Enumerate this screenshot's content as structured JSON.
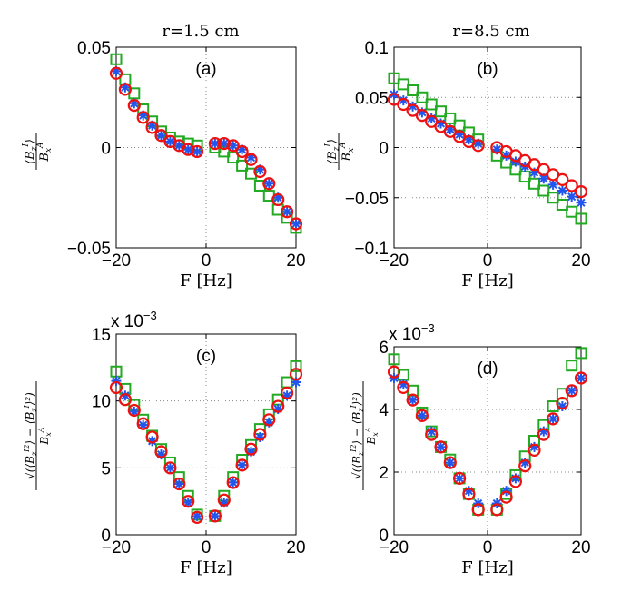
{
  "figure": {
    "column_titles": [
      "r=1.5 cm",
      "r=8.5 cm"
    ]
  },
  "chart_data": [
    {
      "panel": "(a)",
      "type": "scatter",
      "title": "r=1.5 cm",
      "xlabel": "F [Hz]",
      "ylabel": "⟨B_z^I⟩ / B_x^A",
      "xlim": [
        -20,
        20
      ],
      "ylim": [
        -0.05,
        0.05
      ],
      "xticks": [
        -20,
        0,
        20
      ],
      "xtick_labels": [
        "−20",
        "0",
        "20"
      ],
      "yticks": [
        -0.05,
        0,
        0.05
      ],
      "ytick_labels": [
        "−0.05",
        "0",
        "0.05"
      ],
      "exponent_label": "",
      "grid": true,
      "x": [
        -20,
        -18,
        -16,
        -14,
        -12,
        -10,
        -8,
        -6,
        -4,
        -2,
        2,
        4,
        6,
        8,
        10,
        12,
        14,
        16,
        18,
        20
      ],
      "series": [
        {
          "name": "squares",
          "marker": "square",
          "color": "#22aa22",
          "values": [
            0.044,
            0.034,
            0.027,
            0.019,
            0.013,
            0.008,
            0.005,
            0.003,
            0.002,
            0.001,
            0.0,
            -0.002,
            -0.005,
            -0.009,
            -0.013,
            -0.019,
            -0.024,
            -0.031,
            -0.035,
            -0.04
          ]
        },
        {
          "name": "stars",
          "marker": "star",
          "color": "#2255ee",
          "values": [
            0.038,
            0.03,
            0.022,
            0.016,
            0.011,
            0.006,
            0.003,
            0.001,
            -0.001,
            -0.002,
            0.002,
            0.002,
            0.001,
            -0.001,
            -0.005,
            -0.011,
            -0.018,
            -0.025,
            -0.032,
            -0.038
          ]
        },
        {
          "name": "circles",
          "marker": "circle",
          "color": "#ee1111",
          "values": [
            0.037,
            0.029,
            0.021,
            0.015,
            0.01,
            0.006,
            0.003,
            0.001,
            -0.001,
            -0.002,
            0.002,
            0.002,
            0.001,
            -0.002,
            -0.006,
            -0.012,
            -0.018,
            -0.026,
            -0.032,
            -0.038
          ]
        }
      ]
    },
    {
      "panel": "(b)",
      "type": "scatter",
      "title": "r=8.5 cm",
      "xlabel": "F [Hz]",
      "ylabel": "⟨B_z^I⟩ / B_x^A",
      "xlim": [
        -20,
        20
      ],
      "ylim": [
        -0.1,
        0.1
      ],
      "xticks": [
        -20,
        0,
        20
      ],
      "xtick_labels": [
        "−20",
        "0",
        "20"
      ],
      "yticks": [
        -0.1,
        -0.05,
        0,
        0.05,
        0.1
      ],
      "ytick_labels": [
        "−0.1",
        "−0.05",
        "0",
        "0.05",
        "0.1"
      ],
      "exponent_label": "",
      "grid": true,
      "x": [
        -20,
        -18,
        -16,
        -14,
        -12,
        -10,
        -8,
        -6,
        -4,
        -2,
        2,
        4,
        6,
        8,
        10,
        12,
        14,
        16,
        18,
        20
      ],
      "series": [
        {
          "name": "squares",
          "marker": "square",
          "color": "#22aa22",
          "values": [
            0.069,
            0.063,
            0.057,
            0.05,
            0.043,
            0.036,
            0.029,
            0.022,
            0.015,
            0.008,
            -0.008,
            -0.015,
            -0.022,
            -0.029,
            -0.036,
            -0.043,
            -0.05,
            -0.057,
            -0.064,
            -0.071
          ]
        },
        {
          "name": "stars",
          "marker": "star",
          "color": "#2255ee",
          "values": [
            0.053,
            0.047,
            0.041,
            0.035,
            0.029,
            0.024,
            0.018,
            0.013,
            0.008,
            0.004,
            -0.002,
            -0.008,
            -0.014,
            -0.019,
            -0.025,
            -0.031,
            -0.037,
            -0.043,
            -0.049,
            -0.055
          ]
        },
        {
          "name": "circles",
          "marker": "circle",
          "color": "#ee1111",
          "values": [
            0.048,
            0.043,
            0.037,
            0.032,
            0.026,
            0.021,
            0.016,
            0.011,
            0.006,
            0.002,
            0.0,
            -0.004,
            -0.008,
            -0.013,
            -0.017,
            -0.022,
            -0.027,
            -0.032,
            -0.038,
            -0.044
          ]
        }
      ]
    },
    {
      "panel": "(c)",
      "type": "scatter",
      "title": "",
      "xlabel": "F [Hz]",
      "ylabel": "sqrt(⟨B_z^I²⟩ − ⟨B_z^I⟩²) / B_x^A",
      "xlim": [
        -20,
        20
      ],
      "ylim": [
        0,
        15
      ],
      "xticks": [
        -20,
        0,
        20
      ],
      "xtick_labels": [
        "−20",
        "0",
        "20"
      ],
      "yticks": [
        0,
        5,
        10,
        15
      ],
      "ytick_labels": [
        "0",
        "5",
        "10",
        "15"
      ],
      "exponent_label": "x 10",
      "exponent_power": "−3",
      "grid": true,
      "x": [
        -20,
        -18,
        -16,
        -14,
        -12,
        -10,
        -8,
        -6,
        -4,
        -2,
        2,
        4,
        6,
        8,
        10,
        12,
        14,
        16,
        18,
        20
      ],
      "series": [
        {
          "name": "squares",
          "marker": "square",
          "color": "#22aa22",
          "values": [
            12.2,
            10.9,
            9.7,
            8.6,
            7.4,
            6.4,
            5.4,
            4.3,
            2.9,
            1.5,
            1.4,
            2.9,
            4.3,
            5.6,
            6.7,
            7.9,
            9.0,
            10.1,
            11.4,
            12.6
          ]
        },
        {
          "name": "stars",
          "marker": "star",
          "color": "#2255ee",
          "values": [
            11.5,
            10.4,
            9.2,
            8.2,
            7.0,
            6.0,
            5.0,
            3.8,
            2.4,
            1.4,
            1.4,
            2.4,
            3.9,
            5.2,
            6.2,
            7.3,
            8.4,
            9.4,
            10.4,
            11.4
          ]
        },
        {
          "name": "circles",
          "marker": "circle",
          "color": "#ee1111",
          "values": [
            11.0,
            10.1,
            9.3,
            8.3,
            7.3,
            6.2,
            5.0,
            3.8,
            2.5,
            1.3,
            1.4,
            2.6,
            3.9,
            5.2,
            6.4,
            7.5,
            8.6,
            9.6,
            10.6,
            12.0
          ]
        }
      ]
    },
    {
      "panel": "(d)",
      "type": "scatter",
      "title": "",
      "xlabel": "F [Hz]",
      "ylabel": "sqrt(⟨B_z^I²⟩ − ⟨B_z^I⟩²) / B_x^A",
      "xlim": [
        -20,
        20
      ],
      "ylim": [
        0,
        6
      ],
      "xticks": [
        -20,
        0,
        20
      ],
      "xtick_labels": [
        "−20",
        "0",
        "20"
      ],
      "yticks": [
        0,
        2,
        4,
        6
      ],
      "ytick_labels": [
        "0",
        "2",
        "4",
        "6"
      ],
      "exponent_label": "x 10",
      "exponent_power": "−3",
      "grid": true,
      "x": [
        -20,
        -18,
        -16,
        -14,
        -12,
        -10,
        -8,
        -6,
        -4,
        -2,
        2,
        4,
        6,
        8,
        10,
        12,
        14,
        16,
        18,
        20
      ],
      "series": [
        {
          "name": "squares",
          "marker": "square",
          "color": "#22aa22",
          "values": [
            5.6,
            5.1,
            4.6,
            3.9,
            3.3,
            2.8,
            2.4,
            1.8,
            1.3,
            0.8,
            0.8,
            1.3,
            1.9,
            2.5,
            3.0,
            3.5,
            4.1,
            4.5,
            5.4,
            5.8
          ]
        },
        {
          "name": "stars",
          "marker": "star",
          "color": "#2255ee",
          "values": [
            5.0,
            4.8,
            4.3,
            3.8,
            3.3,
            2.8,
            2.3,
            1.8,
            1.4,
            1.0,
            1.0,
            1.4,
            1.8,
            2.3,
            2.8,
            3.3,
            3.7,
            4.1,
            4.6,
            5.0
          ]
        },
        {
          "name": "circles",
          "marker": "circle",
          "color": "#ee1111",
          "values": [
            5.2,
            4.7,
            4.3,
            3.8,
            3.2,
            2.8,
            2.3,
            1.8,
            1.3,
            0.8,
            0.8,
            1.2,
            1.7,
            2.2,
            2.7,
            3.2,
            3.7,
            4.2,
            4.6,
            5.0
          ]
        }
      ]
    }
  ]
}
